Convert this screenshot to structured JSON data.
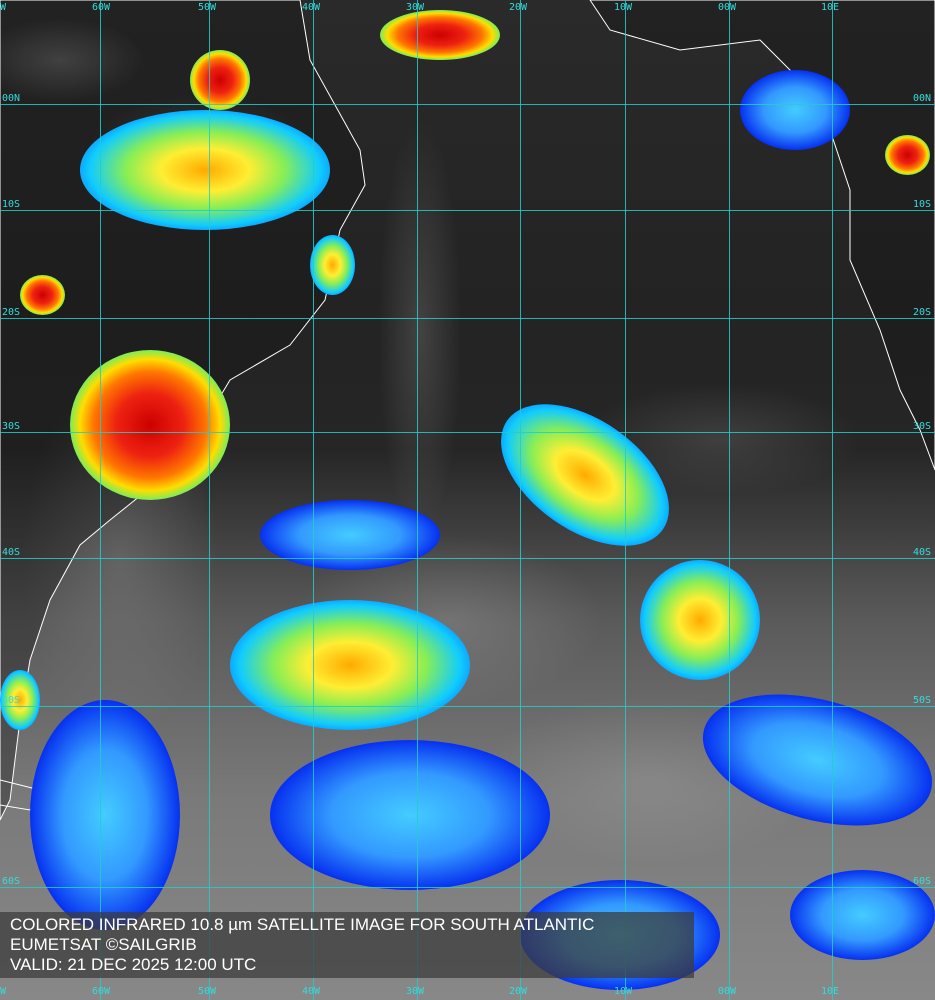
{
  "caption": {
    "title": "COLORED INFRARED 10.8 µm SATELLITE IMAGE FOR SOUTH ATLANTIC",
    "source": "EUMETSAT ©SAILGRIB",
    "valid": "VALID:  21 DEC 2025 12:00 UTC"
  },
  "longitude_labels": [
    "W",
    "60W",
    "50W",
    "40W",
    "30W",
    "20W",
    "10W",
    "00W",
    "10E"
  ],
  "latitude_labels": [
    "00N",
    "10S",
    "20S",
    "30S",
    "40S",
    "50S",
    "60S"
  ],
  "colors": {
    "grid": "#22cccc",
    "coast": "#ffffff",
    "cold_top": "#cc0000",
    "cloud_low": "#0033ee"
  }
}
